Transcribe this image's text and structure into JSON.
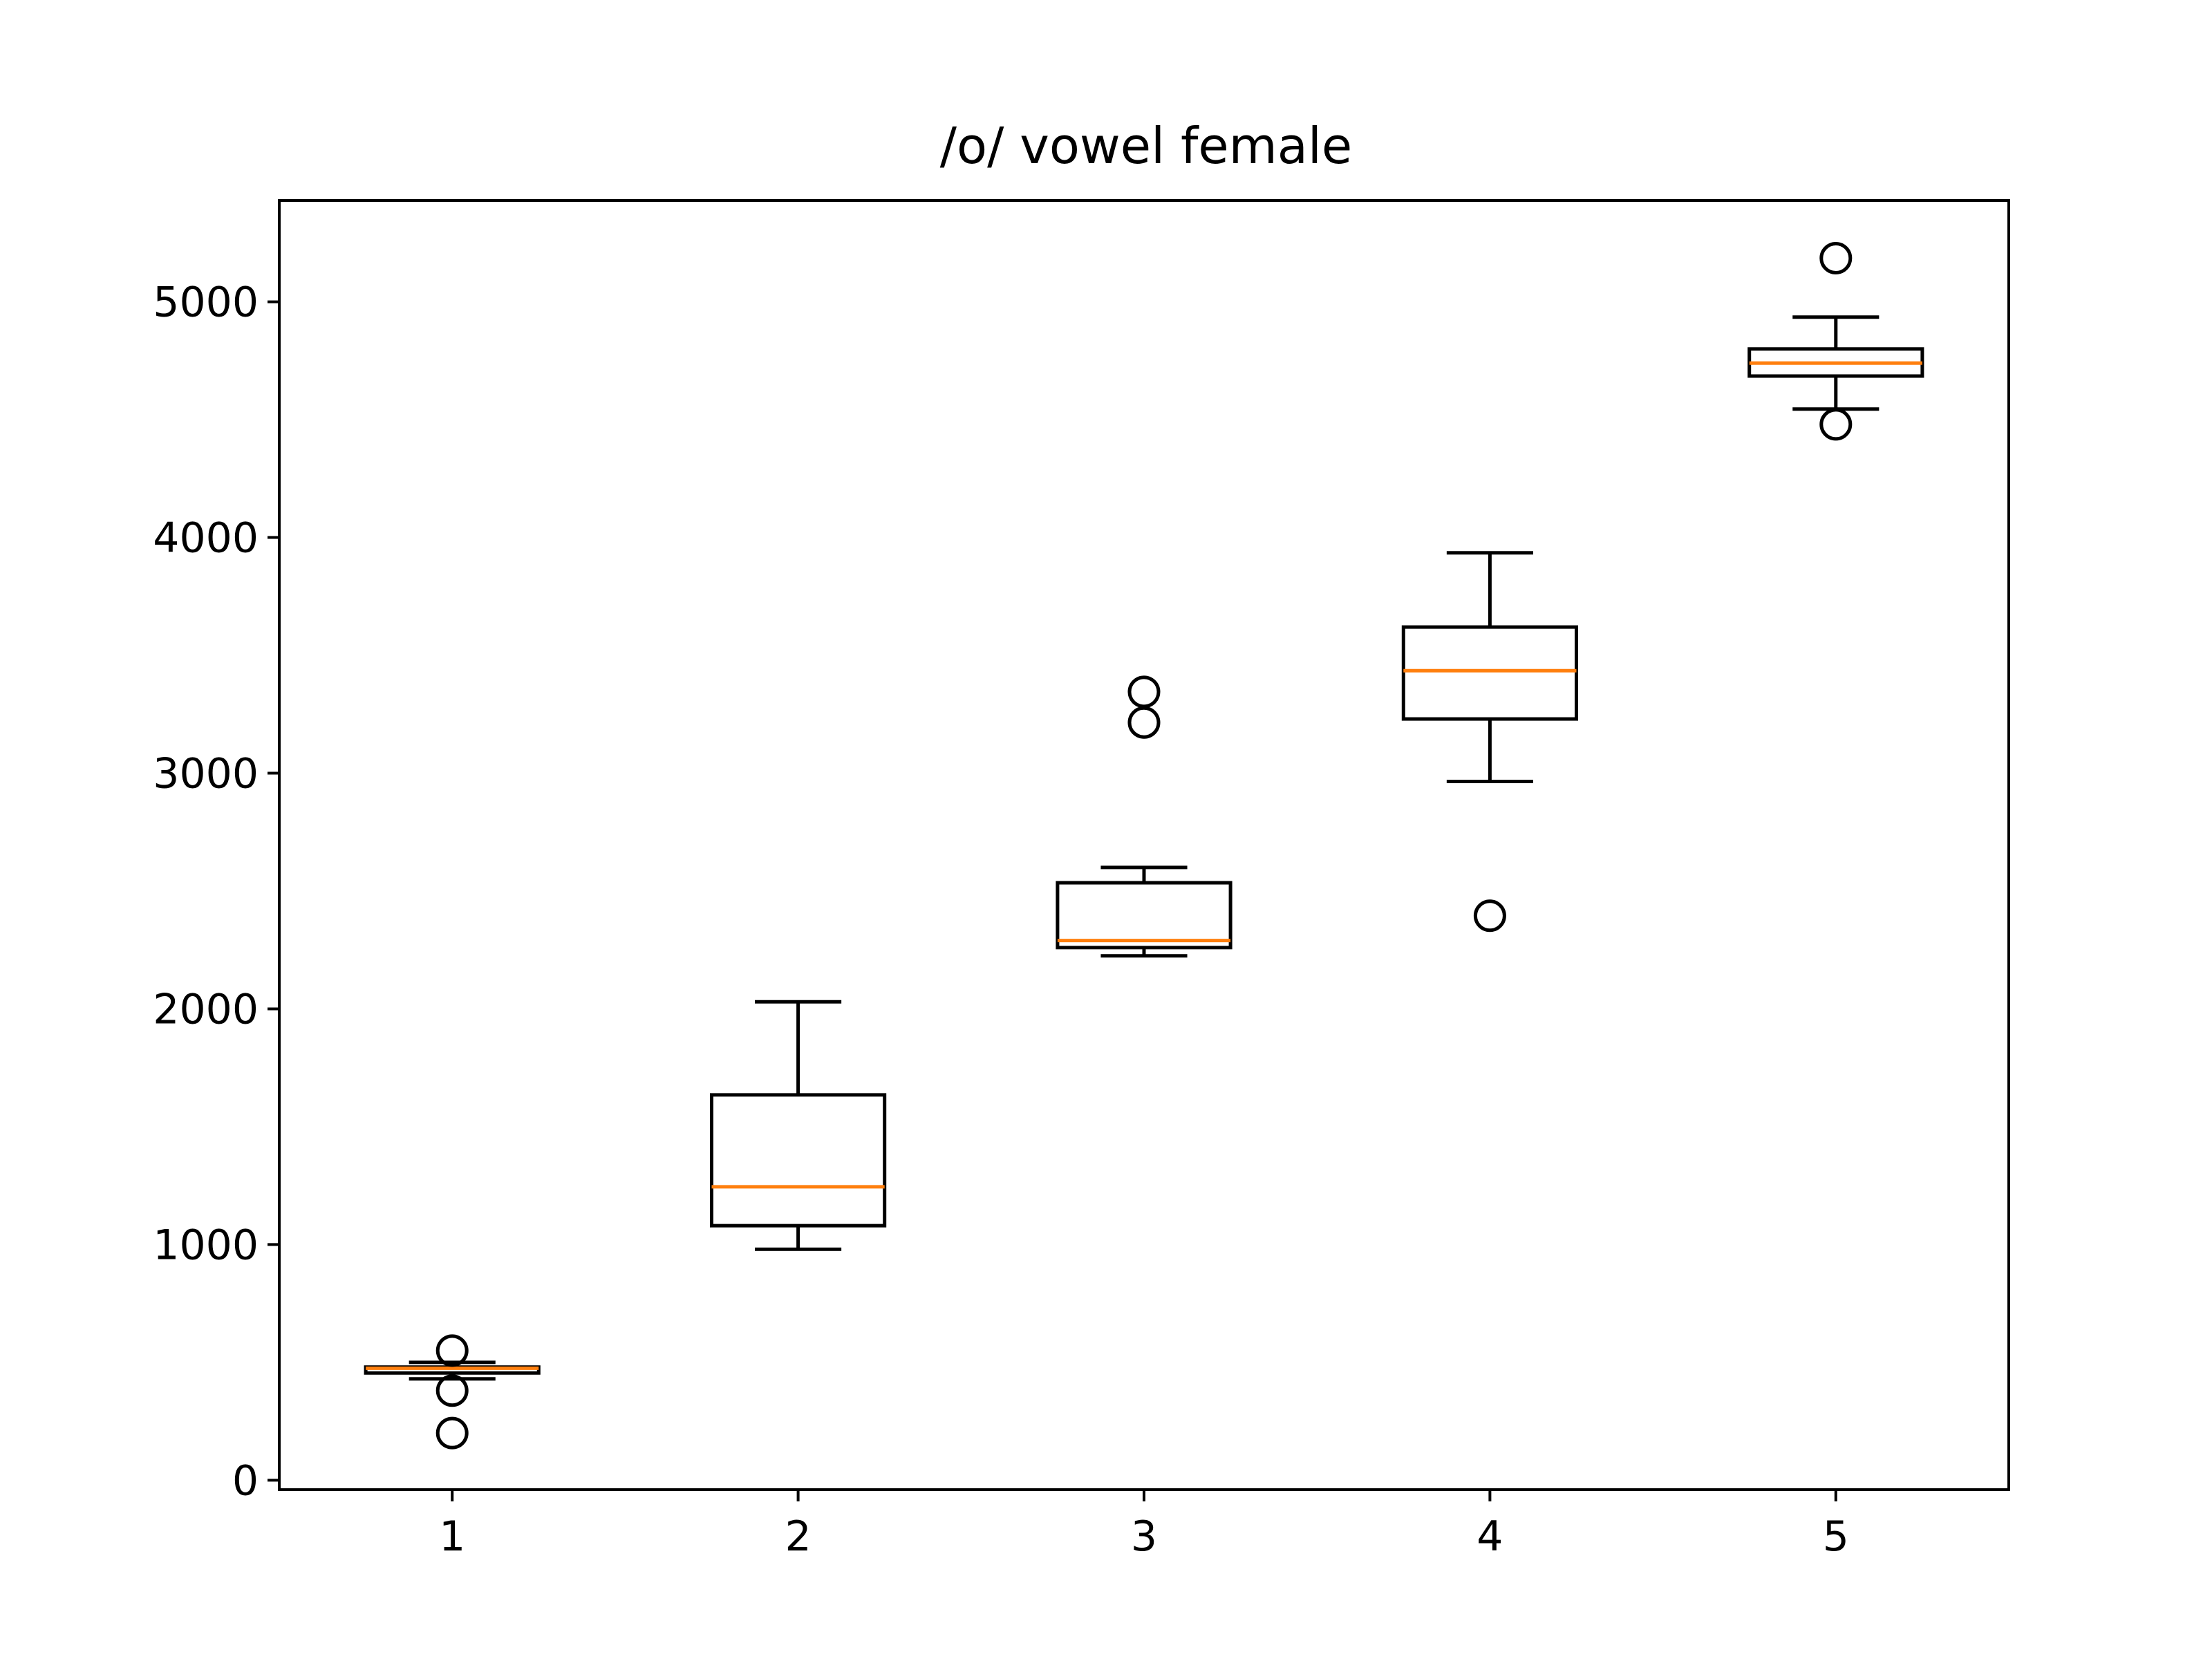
{
  "chart_data": {
    "type": "box",
    "title": "/o/ vowel female",
    "xlabel": "",
    "ylabel": "",
    "categories": [
      "1",
      "2",
      "3",
      "4",
      "5"
    ],
    "ylim": [
      -40,
      5430
    ],
    "yticks": [
      0,
      1000,
      2000,
      3000,
      4000,
      5000
    ],
    "ytick_labels": [
      "0",
      "1000",
      "2000",
      "3000",
      "4000",
      "5000"
    ],
    "grid": false,
    "colors": {
      "box": "#000000",
      "median": "#ff7f0e",
      "background": "#ffffff"
    },
    "boxes": [
      {
        "label": "1",
        "whisker_low": 430,
        "q1": 455,
        "median": 475,
        "q3": 480,
        "whisker_high": 500,
        "outliers": [
          550,
          380,
          200
        ]
      },
      {
        "label": "2",
        "whisker_low": 980,
        "q1": 1080,
        "median": 1245,
        "q3": 1635,
        "whisker_high": 2030,
        "outliers": []
      },
      {
        "label": "3",
        "whisker_low": 2225,
        "q1": 2260,
        "median": 2290,
        "q3": 2535,
        "whisker_high": 2600,
        "outliers": [
          3345,
          3215
        ]
      },
      {
        "label": "4",
        "whisker_low": 2965,
        "q1": 3230,
        "median": 3435,
        "q3": 3620,
        "whisker_high": 3935,
        "outliers": [
          2395
        ]
      },
      {
        "label": "5",
        "whisker_low": 4545,
        "q1": 4685,
        "median": 4740,
        "q3": 4800,
        "whisker_high": 4935,
        "outliers": [
          5185,
          4480
        ]
      }
    ]
  }
}
